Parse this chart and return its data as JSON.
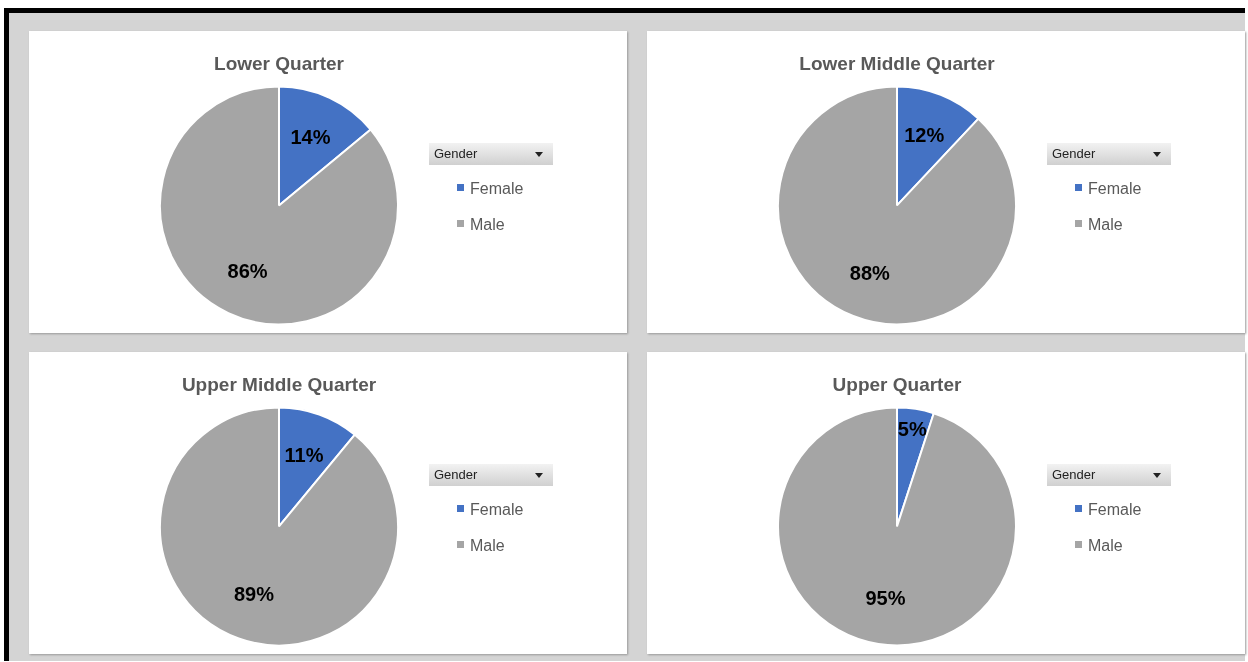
{
  "chart_data": [
    {
      "type": "pie",
      "title": "Lower Quarter",
      "legend_title": "Gender",
      "legend": "right",
      "categories": [
        "Female",
        "Male"
      ],
      "values": [
        14,
        86
      ],
      "value_labels": [
        "14%",
        "86%"
      ],
      "colors": [
        "#4472c4",
        "#a5a5a5"
      ]
    },
    {
      "type": "pie",
      "title": "Lower Middle Quarter",
      "legend_title": "Gender",
      "legend": "right",
      "categories": [
        "Female",
        "Male"
      ],
      "values": [
        12,
        88
      ],
      "value_labels": [
        "12%",
        "88%"
      ],
      "colors": [
        "#4472c4",
        "#a5a5a5"
      ]
    },
    {
      "type": "pie",
      "title": "Upper Middle Quarter",
      "legend_title": "Gender",
      "legend": "right",
      "categories": [
        "Female",
        "Male"
      ],
      "values": [
        11,
        89
      ],
      "value_labels": [
        "11%",
        "89%"
      ],
      "colors": [
        "#4472c4",
        "#a5a5a5"
      ]
    },
    {
      "type": "pie",
      "title": "Upper Quarter",
      "legend_title": "Gender",
      "legend": "right",
      "categories": [
        "Female",
        "Male"
      ],
      "values": [
        5,
        95
      ],
      "value_labels": [
        "5%",
        "95%"
      ],
      "colors": [
        "#4472c4",
        "#a5a5a5"
      ]
    }
  ]
}
